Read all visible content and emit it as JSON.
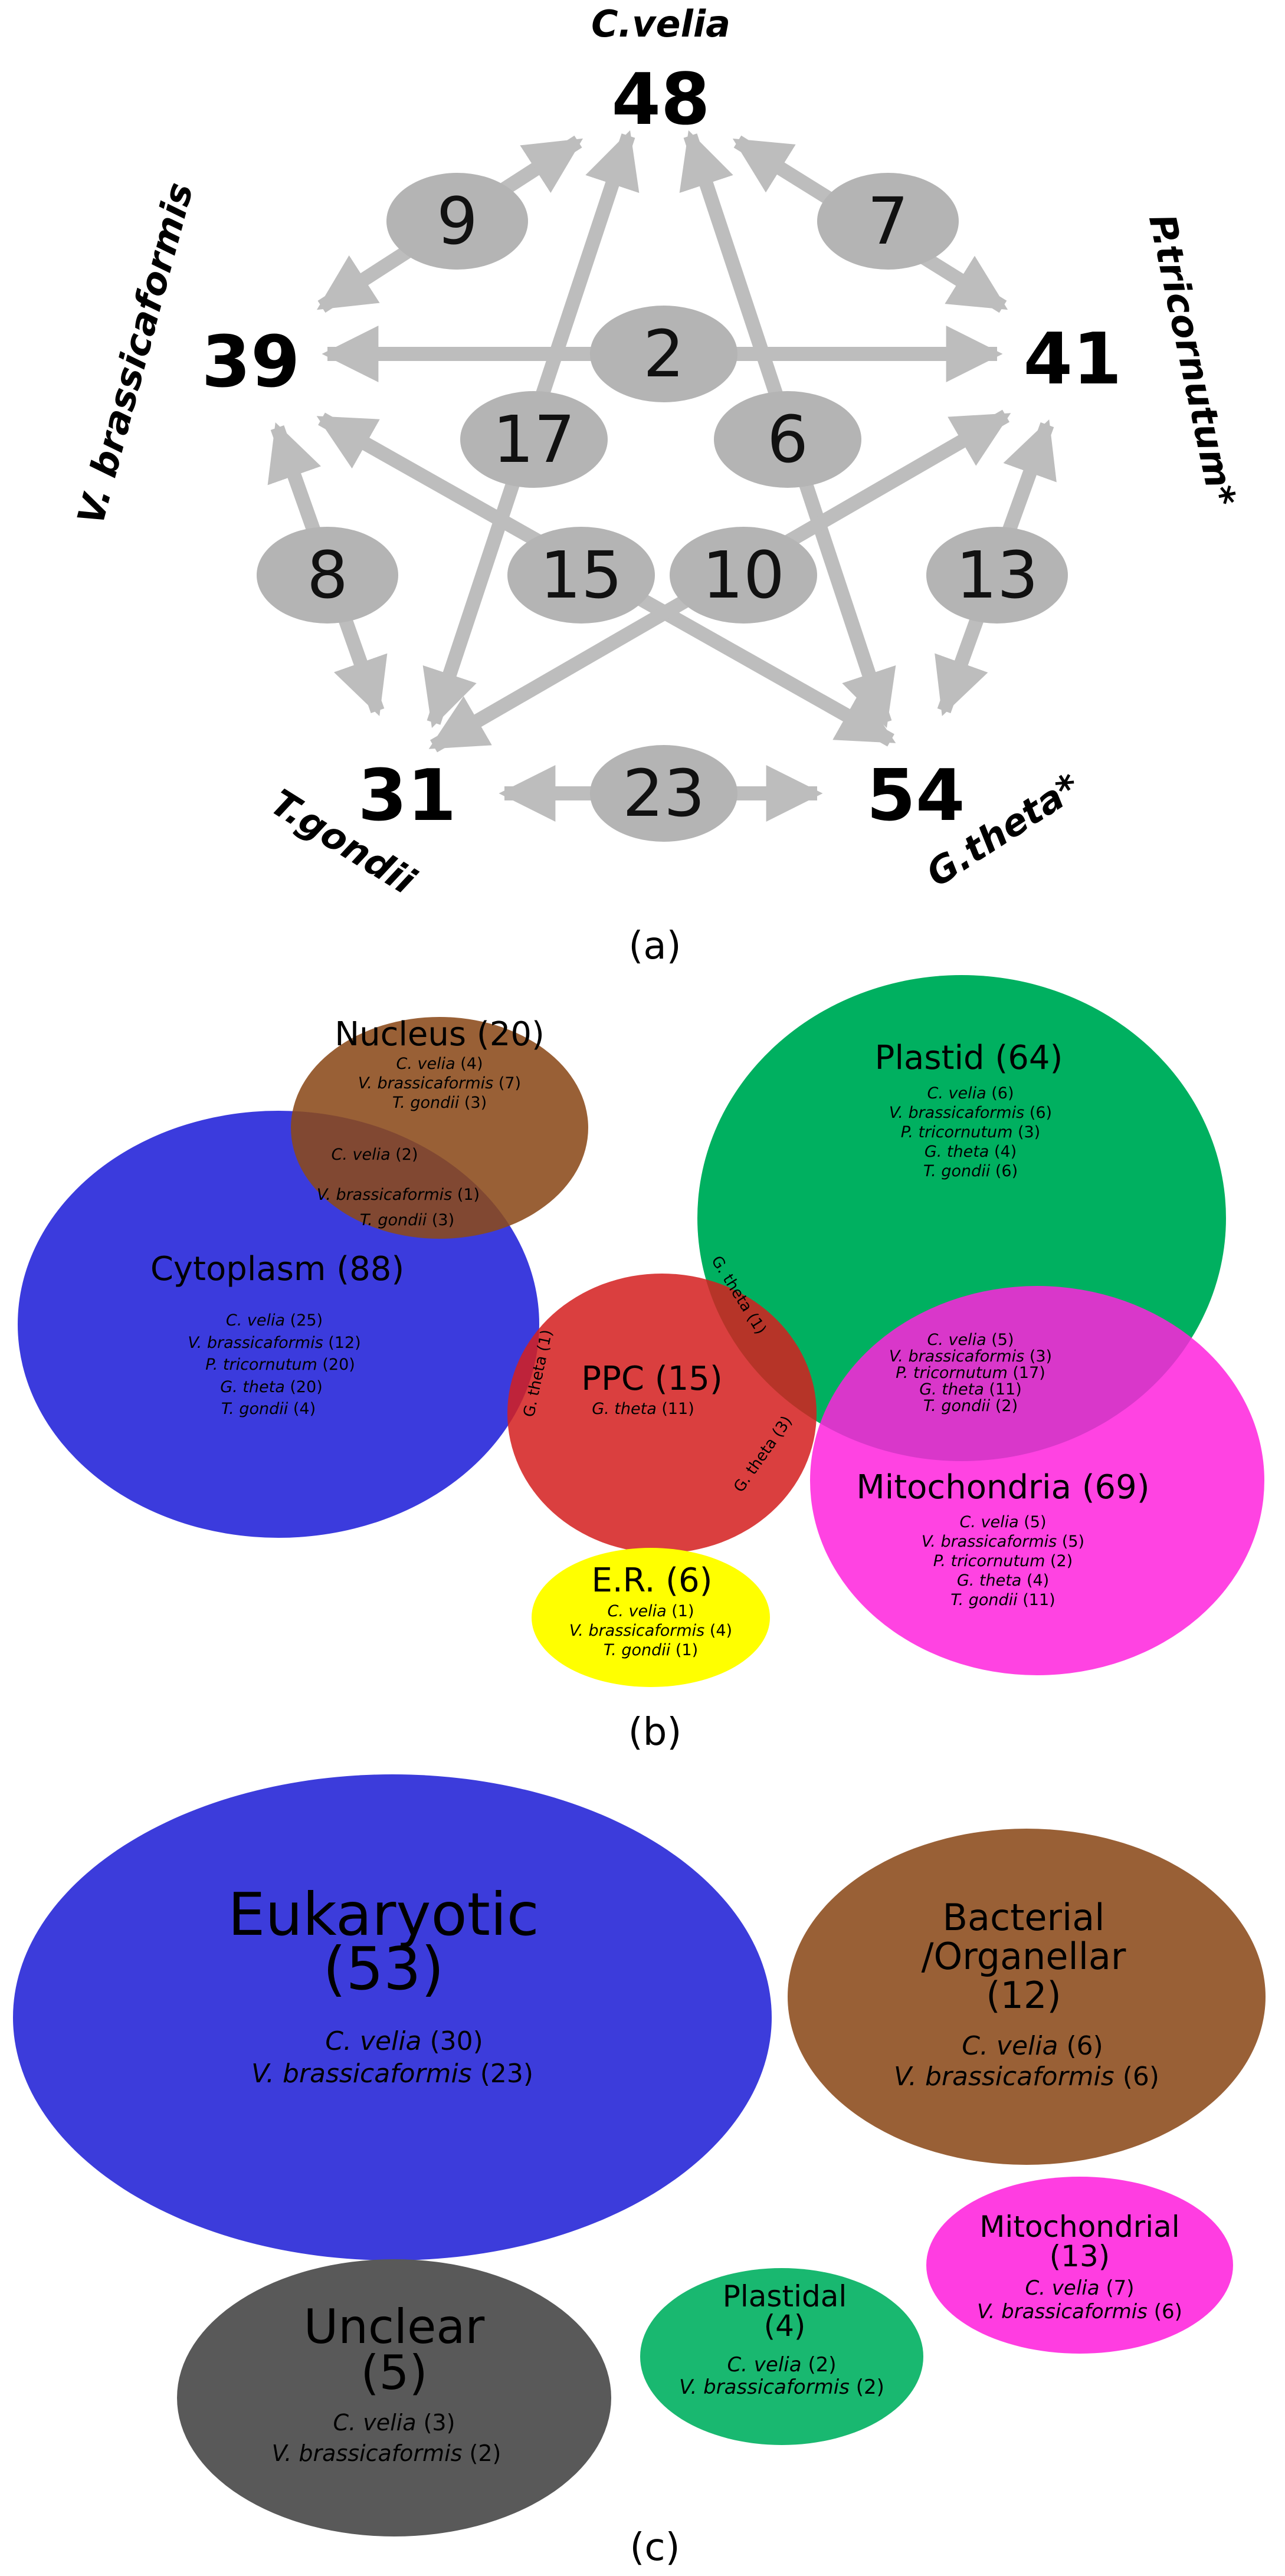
{
  "panel_a": {
    "label": "(a)",
    "arrow_color": "#bdbdbd",
    "bubble_color": "#b4b4b4",
    "nodes": [
      {
        "id": "cvelia",
        "species": "C.velia",
        "count": "48"
      },
      {
        "id": "ptri",
        "species": "P.tricornutum*",
        "count": "41"
      },
      {
        "id": "gtheta",
        "species": "G.theta*",
        "count": "54"
      },
      {
        "id": "tgondii",
        "species": "T.gondii",
        "count": "31"
      },
      {
        "id": "vbras",
        "species": "V. brassicaformis",
        "count": "39"
      }
    ],
    "edges": [
      {
        "from": "cvelia",
        "to": "vbras",
        "value": "9"
      },
      {
        "from": "cvelia",
        "to": "ptri",
        "value": "7"
      },
      {
        "from": "vbras",
        "to": "ptri",
        "value": "2"
      },
      {
        "from": "cvelia",
        "to": "tgondii",
        "value": "17"
      },
      {
        "from": "cvelia",
        "to": "gtheta",
        "value": "6"
      },
      {
        "from": "vbras",
        "to": "tgondii",
        "value": "8"
      },
      {
        "from": "vbras",
        "to": "gtheta",
        "value": "15"
      },
      {
        "from": "ptri",
        "to": "tgondii",
        "value": "10"
      },
      {
        "from": "ptri",
        "to": "gtheta",
        "value": "13"
      },
      {
        "from": "tgondii",
        "to": "gtheta",
        "value": "23"
      }
    ]
  },
  "panel_b": {
    "label": "(b)",
    "sets": [
      {
        "id": "nucleus",
        "title": "Nucleus (20)",
        "color": "#8b4a1a",
        "lines": [
          {
            "species": "C. velia",
            "count": "(4)"
          },
          {
            "species": "V. brassicaformis",
            "count": "(7)"
          },
          {
            "species": "T. gondii",
            "count": "(3)"
          }
        ]
      },
      {
        "id": "cytoplasm",
        "title": "Cytoplasm (88)",
        "color": "#2020d8",
        "lines": [
          {
            "species": "C. velia",
            "count": "(25)"
          },
          {
            "species": "V. brassicaformis",
            "count": "(12)"
          },
          {
            "species": "P. tricornutum",
            "count": "(20)"
          },
          {
            "species": "G. theta",
            "count": "(20)"
          },
          {
            "species": "T. gondii",
            "count": "(4)"
          }
        ]
      },
      {
        "id": "plastid",
        "title": "Plastid (64)",
        "color": "#00b060",
        "lines": [
          {
            "species": "C. velia",
            "count": "(6)"
          },
          {
            "species": "V. brassicaformis",
            "count": "(6)"
          },
          {
            "species": "P. tricornutum",
            "count": "(3)"
          },
          {
            "species": "G. theta",
            "count": "(4)"
          },
          {
            "species": "T. gondii",
            "count": "(6)"
          }
        ]
      },
      {
        "id": "ppc",
        "title": "PPC (15)",
        "color": "#d42020",
        "lines": [
          {
            "species": "G. theta",
            "count": "(11)"
          }
        ]
      },
      {
        "id": "mito",
        "title": "Mitochondria (69)",
        "color": "#ff22dd",
        "lines": [
          {
            "species": "C. velia",
            "count": "(5)"
          },
          {
            "species": "V. brassicaformis",
            "count": "(5)"
          },
          {
            "species": "P. tricornutum",
            "count": "(2)"
          },
          {
            "species": "G. theta",
            "count": "(4)"
          },
          {
            "species": "T. gondii",
            "count": "(11)"
          }
        ]
      },
      {
        "id": "er",
        "title": "E.R. (6)",
        "color": "#ffff00",
        "lines": [
          {
            "species": "C. velia",
            "count": "(1)"
          },
          {
            "species": "V. brassicaformis",
            "count": "(4)"
          },
          {
            "species": "T. gondii",
            "count": "(1)"
          }
        ]
      }
    ],
    "overlaps": {
      "nucleus_cytoplasm": [
        {
          "species": "C. velia",
          "count": "(2)"
        },
        {
          "species": "V. brassicaformis",
          "count": "(1)"
        },
        {
          "species": "T. gondii",
          "count": "(3)"
        }
      ],
      "plastid_mito": [
        {
          "species": "C. velia",
          "count": "(5)"
        },
        {
          "species": "V. brassicaformis",
          "count": "(3)"
        },
        {
          "species": "P. tricornutum",
          "count": "(17)"
        },
        {
          "species": "G. theta",
          "count": "(11)"
        },
        {
          "species": "T. gondii",
          "count": "(2)"
        }
      ],
      "cytoplasm_ppc": "G. theta (1)",
      "plastid_ppc": "G. theta (1)",
      "mito_ppc": "G. theta (3)"
    }
  },
  "panel_c": {
    "label": "(c)",
    "groups": [
      {
        "id": "eukaryotic",
        "title_lines": [
          "Eukaryotic",
          "(53)"
        ],
        "color": "#2b2bd8",
        "lines": [
          {
            "species": "C. velia",
            "count": "(30)"
          },
          {
            "species": "V. brassicaformis",
            "count": "(23)"
          }
        ]
      },
      {
        "id": "bacterial",
        "title_lines": [
          "Bacterial",
          "/Organellar",
          "(12)"
        ],
        "color": "#8b4a1a",
        "lines": [
          {
            "species": "C. velia",
            "count": "(6)"
          },
          {
            "species": "V. brassicaformis",
            "count": "(6)"
          }
        ]
      },
      {
        "id": "mitochondrial",
        "title_lines": [
          "Mitochondrial",
          "(13)"
        ],
        "color": "#ff22dd",
        "lines": [
          {
            "species": "C. velia",
            "count": "(7)"
          },
          {
            "species": "V. brassicaformis",
            "count": "(6)"
          }
        ]
      },
      {
        "id": "plastidal",
        "title_lines": [
          "Plastidal",
          "(4)"
        ],
        "color": "#00b060",
        "lines": [
          {
            "species": "C. velia",
            "count": "(2)"
          },
          {
            "species": "V. brassicaformis",
            "count": "(2)"
          }
        ]
      },
      {
        "id": "unclear",
        "title_lines": [
          "Unclear",
          "(5)"
        ],
        "color": "#595959",
        "lines": [
          {
            "species": "C. velia",
            "count": "(3)"
          },
          {
            "species": "V. brassicaformis",
            "count": "(2)"
          }
        ]
      }
    ]
  }
}
